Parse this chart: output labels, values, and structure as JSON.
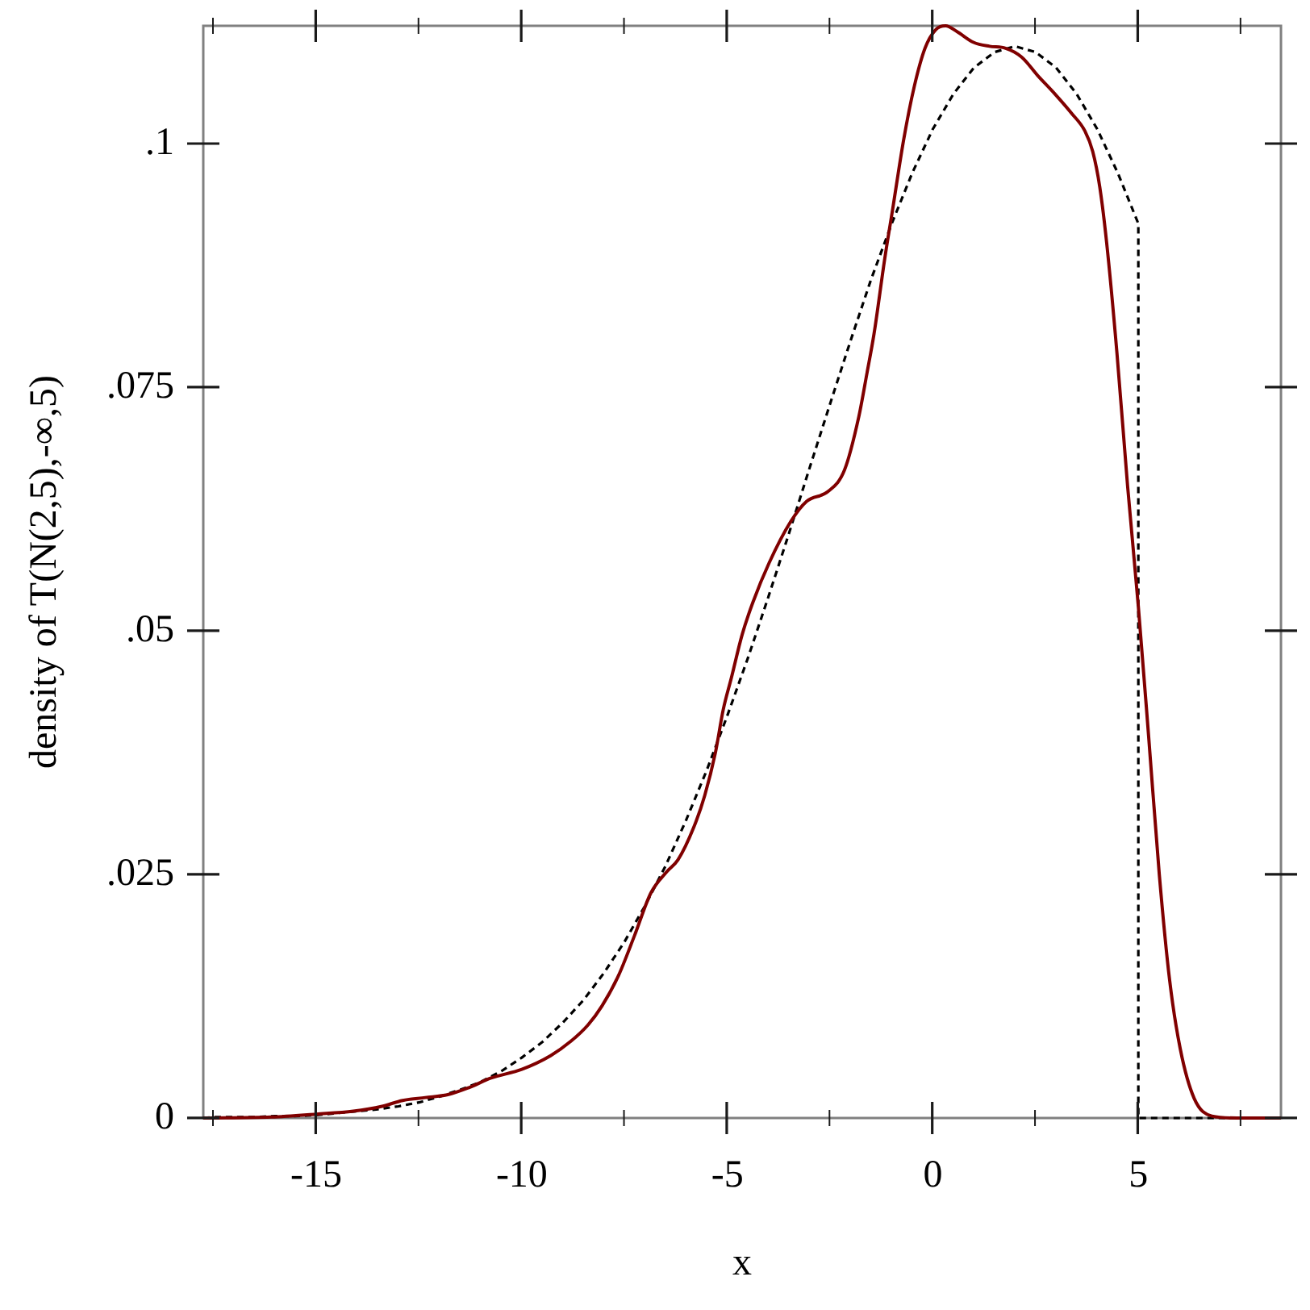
{
  "chart_data": {
    "type": "line",
    "xlabel": "x",
    "ylabel": "density of T(N(2,5),-∞,5)",
    "marker": "none",
    "xlim": [
      -17.75,
      8.47
    ],
    "ylim": [
      0,
      0.1121
    ],
    "xticks": [
      {
        "value": -17.5,
        "label": null
      },
      -15,
      {
        "value": -12.5,
        "label": null
      },
      -10,
      {
        "value": -7.5,
        "label": null
      },
      -5,
      {
        "value": -2.5,
        "label": null
      },
      0,
      {
        "value": 2.5,
        "label": null
      },
      5,
      {
        "value": 7.5,
        "label": null
      }
    ],
    "yticks": [
      0,
      {
        "value": 0.025,
        "label": ".025"
      },
      {
        "value": 0.05,
        "label": ".05"
      },
      {
        "value": 0.075,
        "label": ".075"
      },
      {
        "value": 0.1,
        "label": ".1"
      }
    ],
    "series": [
      {
        "color": "#800000",
        "line_style": "solid",
        "x": [
          -17.75,
          -16.1,
          -15,
          -14.1,
          -13.4,
          -12.9,
          -12.35,
          -11.8,
          -11.3,
          -10.75,
          -10,
          -9.3,
          -8.8,
          -8.4,
          -8.05,
          -7.65,
          -7.26,
          -6.86,
          -6.47,
          -6.2,
          -5.82,
          -5.55,
          -5.29,
          -5.1,
          -4.9,
          -4.64,
          -4.38,
          -3.98,
          -3.46,
          -3.07,
          -2.55,
          -2.15,
          -1.8,
          -1.6,
          -1.43,
          -1.17,
          -0.98,
          -0.71,
          -0.45,
          -0.19,
          0.07,
          0.31,
          0.59,
          0.99,
          1.38,
          1.77,
          2.16,
          2.55,
          2.95,
          3.38,
          3.7,
          3.89,
          4.06,
          4.23,
          4.48,
          4.74,
          5,
          5.25,
          5.51,
          5.76,
          6.02,
          6.36,
          6.79,
          7.4,
          8.47
        ],
        "values": [
          0,
          0.0001,
          0.0004,
          0.0007,
          0.0012,
          0.0018,
          0.0021,
          0.0024,
          0.0031,
          0.0041,
          0.005,
          0.0064,
          0.0079,
          0.0095,
          0.0115,
          0.0146,
          0.0187,
          0.0231,
          0.0253,
          0.0265,
          0.0298,
          0.0331,
          0.0375,
          0.0419,
          0.0452,
          0.0496,
          0.0529,
          0.057,
          0.0612,
          0.0633,
          0.0643,
          0.0665,
          0.072,
          0.0765,
          0.0805,
          0.0882,
          0.0932,
          0.1004,
          0.1059,
          0.1098,
          0.1117,
          0.1121,
          0.1115,
          0.1104,
          0.11,
          0.1098,
          0.1089,
          0.107,
          0.1052,
          0.1031,
          0.1013,
          0.0992,
          0.0956,
          0.0898,
          0.0785,
          0.0648,
          0.0525,
          0.0392,
          0.025,
          0.0142,
          0.0071,
          0.002,
          0.0002,
          0,
          0
        ]
      },
      {
        "color": "#000000",
        "line_style": "dashed",
        "x": [
          -17.75,
          -17.5,
          -17,
          -16.5,
          -16,
          -15.5,
          -15,
          -14.5,
          -14,
          -13.5,
          -13,
          -12.5,
          -12,
          -11.5,
          -11,
          -10.5,
          -10,
          -9.5,
          -9,
          -8.5,
          -8,
          -7.5,
          -7,
          -6.5,
          -6,
          -5.5,
          -5,
          -4.5,
          -4,
          -3.5,
          -3,
          -2.5,
          -2,
          -1.5,
          -1,
          -0.5,
          0,
          0.5,
          1,
          1.5,
          2,
          2.5,
          3,
          3.5,
          4,
          4.5,
          5,
          5,
          8.47
        ],
        "values": [
          0,
          0.0001,
          0.0001,
          0.0001,
          0.0002,
          0.0002,
          0.0003,
          0.0005,
          0.0007,
          0.0009,
          0.0012,
          0.0016,
          0.0022,
          0.0029,
          0.0037,
          0.0048,
          0.0062,
          0.0078,
          0.0098,
          0.0121,
          0.0149,
          0.0181,
          0.0218,
          0.0259,
          0.0306,
          0.0357,
          0.0413,
          0.0472,
          0.0535,
          0.06,
          0.0667,
          0.0733,
          0.0798,
          0.0861,
          0.0918,
          0.097,
          0.1015,
          0.1051,
          0.1078,
          0.1094,
          0.11,
          0.1094,
          0.1078,
          0.1051,
          0.1015,
          0.097,
          0.0918,
          0,
          0
        ]
      }
    ]
  }
}
